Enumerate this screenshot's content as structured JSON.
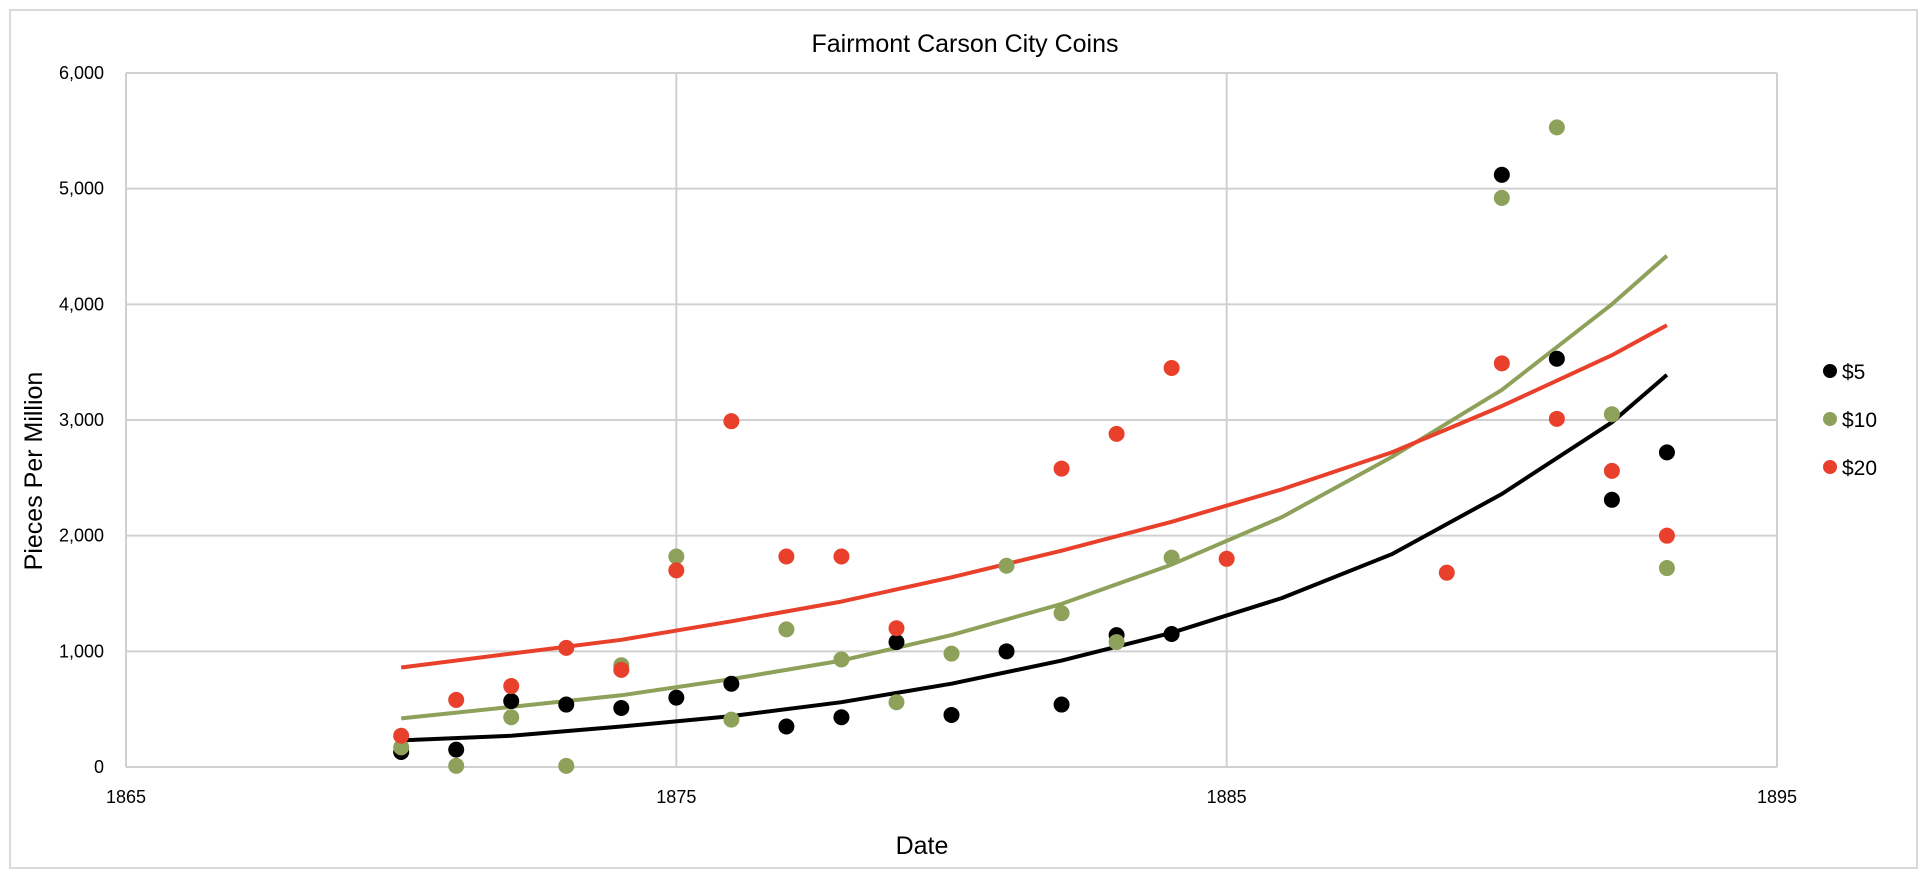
{
  "chart_data": {
    "type": "scatter",
    "title": "Fairmont Carson City Coins",
    "xlabel": "Date",
    "ylabel": "Pieces Per Million",
    "xlim": [
      1865,
      1895
    ],
    "ylim": [
      0,
      6000
    ],
    "x_ticks": [
      1865,
      1875,
      1885,
      1895
    ],
    "x_tick_labels": [
      "1865",
      "1875",
      "1885",
      "1895"
    ],
    "y_ticks": [
      0,
      1000,
      2000,
      3000,
      4000,
      5000,
      6000
    ],
    "y_tick_labels": [
      "0",
      "1,000",
      "2,000",
      "3,000",
      "4,000",
      "5,000",
      "6,000"
    ],
    "grid": true,
    "legend_position": "right",
    "series": [
      {
        "name": "$5",
        "color": "#000000",
        "points": [
          [
            1870,
            130
          ],
          [
            1871,
            150
          ],
          [
            1872,
            570
          ],
          [
            1873,
            540
          ],
          [
            1874,
            510
          ],
          [
            1875,
            600
          ],
          [
            1876,
            720
          ],
          [
            1877,
            350
          ],
          [
            1878,
            430
          ],
          [
            1879,
            1080
          ],
          [
            1880,
            450
          ],
          [
            1881,
            1000
          ],
          [
            1882,
            540
          ],
          [
            1883,
            1140
          ],
          [
            1884,
            1150
          ],
          [
            1890,
            5120
          ],
          [
            1891,
            3530
          ],
          [
            1892,
            2310
          ],
          [
            1893,
            2720
          ]
        ],
        "trendline": [
          [
            1870,
            230
          ],
          [
            1872,
            270
          ],
          [
            1874,
            350
          ],
          [
            1876,
            440
          ],
          [
            1878,
            560
          ],
          [
            1880,
            720
          ],
          [
            1882,
            920
          ],
          [
            1884,
            1160
          ],
          [
            1886,
            1460
          ],
          [
            1888,
            1840
          ],
          [
            1890,
            2360
          ],
          [
            1892,
            2980
          ],
          [
            1893,
            3390
          ]
        ]
      },
      {
        "name": "$10",
        "color": "#8ea15a",
        "points": [
          [
            1870,
            170
          ],
          [
            1871,
            10
          ],
          [
            1872,
            430
          ],
          [
            1873,
            10
          ],
          [
            1874,
            880
          ],
          [
            1875,
            1820
          ],
          [
            1876,
            410
          ],
          [
            1877,
            1190
          ],
          [
            1878,
            930
          ],
          [
            1879,
            560
          ],
          [
            1880,
            980
          ],
          [
            1881,
            1740
          ],
          [
            1882,
            1330
          ],
          [
            1883,
            1080
          ],
          [
            1884,
            1810
          ],
          [
            1890,
            4920
          ],
          [
            1891,
            5530
          ],
          [
            1892,
            3050
          ],
          [
            1893,
            1720
          ]
        ],
        "trendline": [
          [
            1870,
            420
          ],
          [
            1872,
            520
          ],
          [
            1874,
            620
          ],
          [
            1876,
            760
          ],
          [
            1878,
            920
          ],
          [
            1880,
            1140
          ],
          [
            1882,
            1410
          ],
          [
            1884,
            1750
          ],
          [
            1886,
            2160
          ],
          [
            1888,
            2680
          ],
          [
            1890,
            3260
          ],
          [
            1892,
            4000
          ],
          [
            1893,
            4420
          ]
        ]
      },
      {
        "name": "$20",
        "color": "#e8402a",
        "points": [
          [
            1870,
            270
          ],
          [
            1871,
            580
          ],
          [
            1872,
            700
          ],
          [
            1873,
            1030
          ],
          [
            1874,
            840
          ],
          [
            1875,
            1700
          ],
          [
            1876,
            2990
          ],
          [
            1877,
            1820
          ],
          [
            1878,
            1820
          ],
          [
            1879,
            1200
          ],
          [
            1882,
            2580
          ],
          [
            1883,
            2880
          ],
          [
            1884,
            3450
          ],
          [
            1885,
            1800
          ],
          [
            1889,
            1680
          ],
          [
            1890,
            3490
          ],
          [
            1891,
            3010
          ],
          [
            1892,
            2560
          ],
          [
            1893,
            2000
          ]
        ],
        "trendline": [
          [
            1870,
            860
          ],
          [
            1872,
            980
          ],
          [
            1874,
            1100
          ],
          [
            1876,
            1260
          ],
          [
            1878,
            1430
          ],
          [
            1880,
            1640
          ],
          [
            1882,
            1870
          ],
          [
            1884,
            2120
          ],
          [
            1886,
            2400
          ],
          [
            1888,
            2720
          ],
          [
            1890,
            3120
          ],
          [
            1892,
            3560
          ],
          [
            1893,
            3820
          ]
        ]
      }
    ]
  }
}
